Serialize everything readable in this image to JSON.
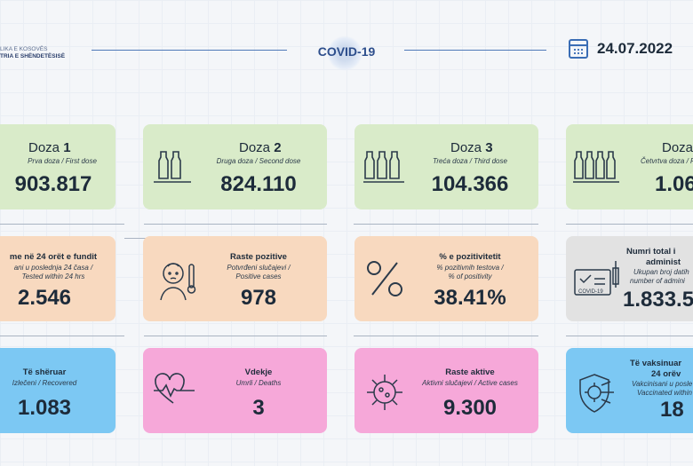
{
  "header": {
    "ministry_line1": "LIKA E KOSOVËS",
    "ministry_line2": "TRIA E SHËNDETËSISË",
    "covid_label": "COVID-19",
    "date": "24.07.2022"
  },
  "row1": [
    {
      "title": "Doza",
      "num": "1",
      "sub": "Prva doza / First dose",
      "value": "903.817",
      "color": "#d9ebc9",
      "icon": "single-vial-icon"
    },
    {
      "title": "Doza",
      "num": "2",
      "sub": "Druga doza / Second dose",
      "value": "824.110",
      "color": "#d9ebc9",
      "icon": "two-vials-icon"
    },
    {
      "title": "Doza",
      "num": "3",
      "sub": "Treća doza / Third dose",
      "value": "104.366",
      "color": "#d9ebc9",
      "icon": "three-vials-icon"
    },
    {
      "title": "Doza",
      "num": "",
      "sub": "Četvrtva doza / Fo",
      "value": "1.06",
      "color": "#d9ebc9",
      "icon": "four-vials-icon"
    }
  ],
  "row2": [
    {
      "title": "me në 24 orët e fundit",
      "sub1": "ani u poslednja 24 časa /",
      "sub2": "Tested within 24 hrs",
      "value": "2.546",
      "color": "#f8d9bf"
    },
    {
      "title": "Raste pozitive",
      "sub1": "Potvrđeni slučajevi /",
      "sub2": "Positive cases",
      "value": "978",
      "color": "#f8d9bf",
      "icon": "sick-person-thermometer-icon"
    },
    {
      "title": "% e pozitivitetit",
      "sub1": "% pozitivnih testova /",
      "sub2": "% of positivity",
      "value": "38.41%",
      "color": "#f8d9bf",
      "icon": "percent-icon"
    },
    {
      "title": "Numri total i",
      "title2": "administ",
      "sub1": "Ukupan broj datih",
      "sub2": "number of admini",
      "value": "1.833.5",
      "color": "#e2e2e2",
      "icon": "vaccination-card-icon",
      "card_label": "COVID-19"
    }
  ],
  "row3": [
    {
      "title": "Të shëruar",
      "sub1": "Izlečeni / Recovered",
      "value": "1.083",
      "color": "#7cc8f3"
    },
    {
      "title": "Vdekje",
      "sub1": "Umrli / Deaths",
      "value": "3",
      "color": "#f6a8d9",
      "icon": "heartbeat-icon"
    },
    {
      "title": "Raste aktive",
      "sub1": "Aktivni slučajevi / Active cases",
      "value": "9.300",
      "color": "#f6a8d9",
      "icon": "virus-icon"
    },
    {
      "title": "Të vaksinuar",
      "title2": "24 orëv",
      "sub1": "Vakcinisani u posle",
      "sub2": "Vaccinated within",
      "value": "18",
      "color": "#7cc8f3",
      "icon": "shield-virus-icon"
    }
  ]
}
